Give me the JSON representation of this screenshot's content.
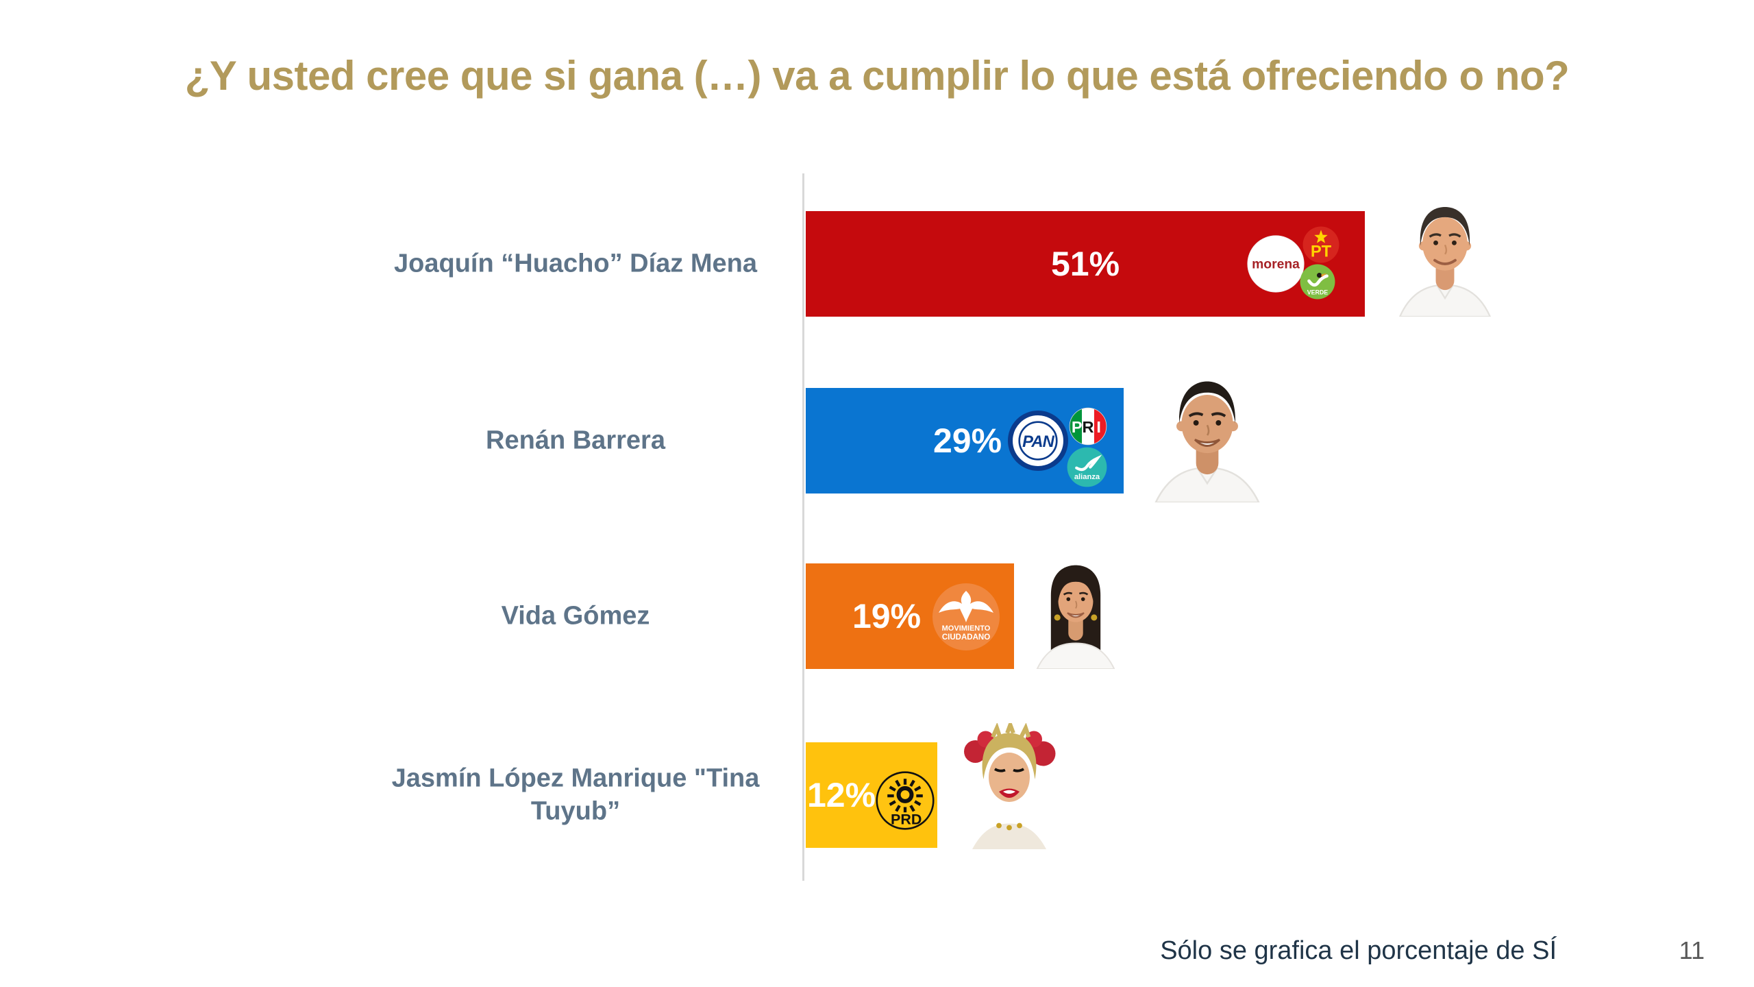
{
  "slide": {
    "title": "¿Y usted cree que si gana (…) va a cumplir lo que está ofreciendo o no?",
    "footnote": "Sólo se grafica el porcentaje de SÍ",
    "page_number": "11"
  },
  "chart_data": {
    "type": "bar",
    "orientation": "horizontal",
    "title": "¿Y usted cree que si gana (…) va a cumplir lo que está ofreciendo o no?",
    "note": "Sólo se grafica el porcentaje de SÍ",
    "unit": "%",
    "xlim": [
      0,
      55
    ],
    "grid": false,
    "legend": false,
    "categories": [
      "Joaquín “Huacho” Díaz Mena",
      "Renán Barrera",
      "Vida Gómez",
      "Jasmín López Manrique \"Tina Tuyub”"
    ],
    "values": [
      51,
      29,
      19,
      12
    ],
    "value_labels": [
      "51%",
      "29%",
      "19%",
      "12%"
    ],
    "bar_colors": [
      "#C50A0D",
      "#0A75D1",
      "#EE7112",
      "#FFC20D"
    ],
    "rows": [
      {
        "label": "Joaquín “Huacho” Díaz Mena",
        "value": 51,
        "value_label": "51%",
        "parties": [
          "morena",
          "PT",
          "VERDE"
        ],
        "logos": {
          "morena": "morena",
          "pt": "PT",
          "verde": "VERDE"
        }
      },
      {
        "label": "Renán Barrera",
        "value": 29,
        "value_label": "29%",
        "parties": [
          "PAN",
          "PRI",
          "alianza"
        ],
        "logos": {
          "pan": "PAN",
          "pri_p": "P",
          "pri_r": "R",
          "pri_i": "I",
          "alianza": "alianza"
        }
      },
      {
        "label": "Vida Gómez",
        "value": 19,
        "value_label": "19%",
        "parties": [
          "Movimiento Ciudadano"
        ],
        "logos": {
          "mc_line1": "MOVIMIENTO",
          "mc_line2": "CIUDADANO"
        }
      },
      {
        "label": "Jasmín López Manrique \"Tina Tuyub”",
        "value": 12,
        "value_label": "12%",
        "parties": [
          "PRD"
        ],
        "logos": {
          "prd": "PRD"
        }
      }
    ]
  },
  "colors": {
    "title": "#B29A5B",
    "category_label": "#5E7489",
    "axis_line": "#D8D8D8",
    "value_label": "#FFFFFF",
    "footnote": "#1F3447",
    "page_number": "#595959",
    "morena_text": "#A62125",
    "pt_circle": "#D6251E",
    "pt_text": "#FFD400",
    "verde_circle": "#7FBE42",
    "pan_navy": "#0B3B8C",
    "pri_green": "#00953B",
    "pri_red": "#EC1C24",
    "alianza_teal": "#2CB9AF",
    "mc_circle": "#F0873E",
    "prd_yellow": "#FFC411"
  }
}
